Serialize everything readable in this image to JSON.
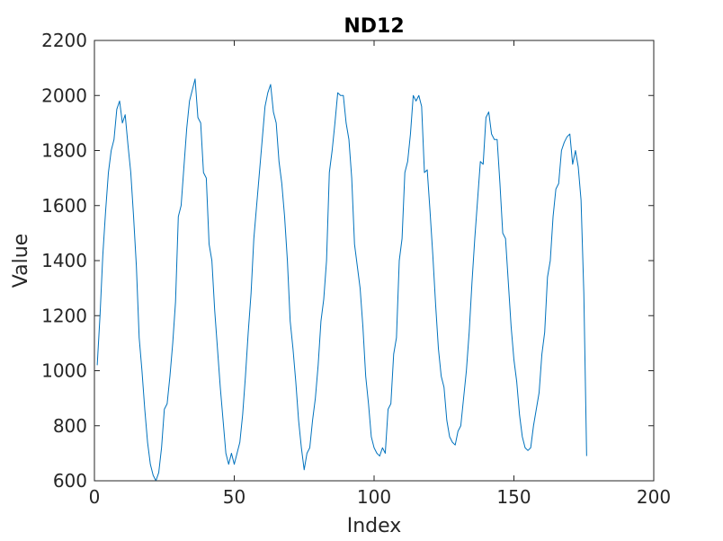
{
  "chart_data": {
    "type": "line",
    "title": "ND12",
    "xlabel": "Index",
    "ylabel": "Value",
    "xlim": [
      0,
      200
    ],
    "ylim": [
      600,
      2200
    ],
    "xticks": [
      0,
      50,
      100,
      150,
      200
    ],
    "yticks": [
      600,
      800,
      1000,
      1200,
      1400,
      1600,
      1800,
      2000,
      2200
    ],
    "grid": false,
    "line_color": "#0072BD",
    "series": [
      {
        "values": [
          1020,
          1200,
          1420,
          1580,
          1720,
          1800,
          1840,
          1950,
          1980,
          1900,
          1930,
          1820,
          1720,
          1560,
          1380,
          1120,
          1000,
          860,
          740,
          660,
          620,
          600,
          630,
          720,
          860,
          880,
          980,
          1100,
          1250,
          1560,
          1600,
          1740,
          1880,
          1980,
          2020,
          2060,
          1920,
          1900,
          1720,
          1700,
          1460,
          1400,
          1220,
          1080,
          940,
          820,
          700,
          660,
          700,
          660,
          700,
          740,
          840,
          980,
          1140,
          1280,
          1480,
          1600,
          1720,
          1840,
          1960,
          2010,
          2040,
          1940,
          1900,
          1760,
          1680,
          1560,
          1400,
          1180,
          1080,
          960,
          820,
          720,
          640,
          700,
          720,
          820,
          900,
          1020,
          1180,
          1260,
          1400,
          1720,
          1800,
          1900,
          2010,
          2000,
          2000,
          1900,
          1840,
          1700,
          1460,
          1380,
          1300,
          1160,
          980,
          880,
          760,
          720,
          700,
          690,
          720,
          700,
          860,
          880,
          1060,
          1120,
          1400,
          1480,
          1720,
          1760,
          1860,
          2000,
          1980,
          2000,
          1960,
          1720,
          1730,
          1580,
          1420,
          1240,
          1080,
          980,
          940,
          820,
          760,
          740,
          730,
          780,
          800,
          900,
          1000,
          1140,
          1320,
          1480,
          1620,
          1760,
          1750,
          1920,
          1940,
          1860,
          1840,
          1840,
          1680,
          1500,
          1480,
          1320,
          1160,
          1040,
          960,
          840,
          760,
          720,
          710,
          720,
          800,
          860,
          920,
          1060,
          1140,
          1340,
          1400,
          1560,
          1660,
          1680,
          1800,
          1830,
          1850,
          1860,
          1750,
          1800,
          1740,
          1620,
          1280,
          690
        ]
      }
    ]
  }
}
